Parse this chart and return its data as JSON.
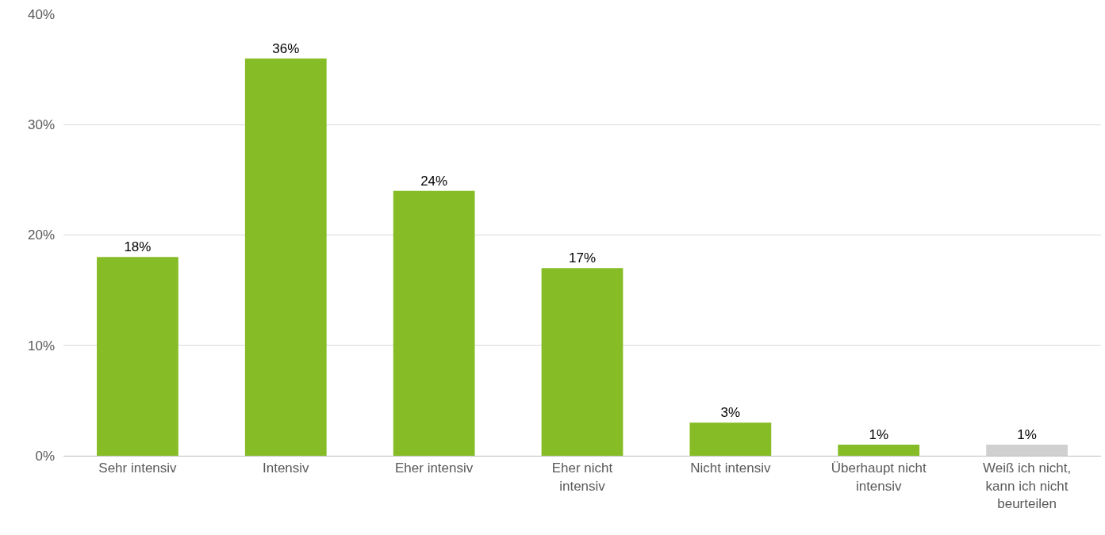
{
  "chart_data": {
    "type": "bar",
    "categories": [
      "Sehr intensiv",
      "Intensiv",
      "Eher intensiv",
      "Eher nicht intensiv",
      "Nicht intensiv",
      "Überhaupt nicht intensiv",
      "Weiß ich nicht, kann ich nicht beurteilen"
    ],
    "values": [
      18,
      36,
      24,
      17,
      3,
      1,
      1
    ],
    "colors": [
      "#86bc25",
      "#86bc25",
      "#86bc25",
      "#86bc25",
      "#86bc25",
      "#86bc25",
      "#d0d0d0"
    ],
    "value_labels": [
      "18%",
      "36%",
      "24%",
      "17%",
      "3%",
      "1%",
      "1%"
    ],
    "ylim": [
      0,
      40
    ],
    "yticks": [
      {
        "value": 0,
        "label": "0%"
      },
      {
        "value": 10,
        "label": "10%"
      },
      {
        "value": 20,
        "label": "20%"
      },
      {
        "value": 30,
        "label": "30%"
      },
      {
        "value": 40,
        "label": "40%"
      }
    ],
    "grid": "y"
  }
}
